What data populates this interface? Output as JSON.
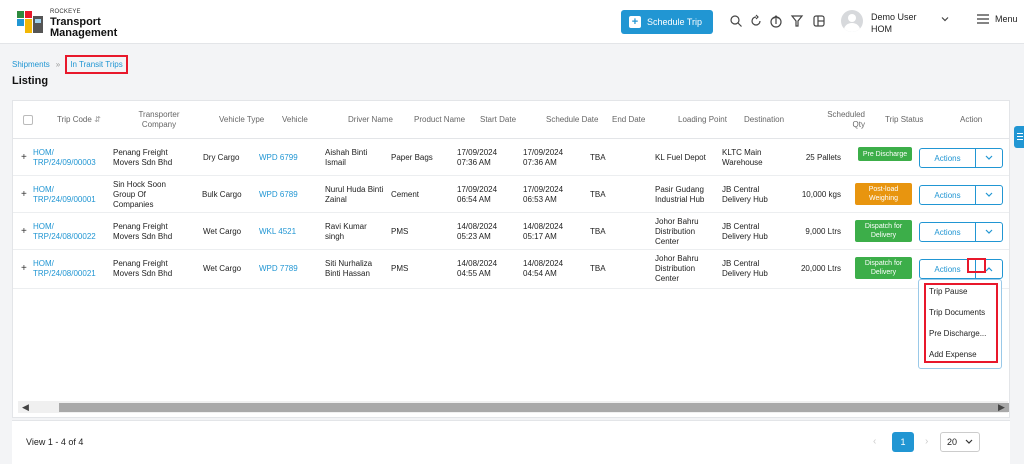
{
  "header": {
    "brand_small": "ROCKEYE",
    "brand_line1": "Transport",
    "brand_line2": "Management",
    "schedule_btn": "Schedule Trip",
    "user_name": "Demo User",
    "user_org": "HOM",
    "menu_label": "Menu"
  },
  "breadcrumb": {
    "root": "Shipments",
    "current": "In Transit Trips"
  },
  "page_title": "Listing",
  "columns": {
    "trip_code": "Trip Code",
    "transporter_1": "Transporter",
    "transporter_2": "Company",
    "vehicle_type": "Vehicle Type",
    "vehicle": "Vehicle",
    "driver": "Driver Name",
    "product": "Product Name",
    "start": "Start Date",
    "schedule": "Schedule Date",
    "end": "End Date",
    "loading": "Loading Point",
    "destination": "Destination",
    "qty_1": "Scheduled",
    "qty_2": "Qty",
    "status": "Trip Status",
    "action": "Action"
  },
  "rows": [
    {
      "trip_1": "HOM/",
      "trip_2": "TRP/24/09/00003",
      "company": [
        "Penang Freight",
        "Movers Sdn Bhd"
      ],
      "vtype": "Dry Cargo",
      "vehicle": "WPD 6799",
      "driver": [
        "Aishah Binti",
        "Ismail"
      ],
      "product": "Paper Bags",
      "start": [
        "17/09/2024",
        "07:36 AM"
      ],
      "schedule": [
        "17/09/2024",
        "07:36 AM"
      ],
      "end": "TBA",
      "loading": [
        "KL Fuel Depot"
      ],
      "dest": [
        "KLTC Main",
        "Warehouse"
      ],
      "qty": "25 Pallets",
      "status": "Pre Discharge",
      "action": "Actions"
    },
    {
      "trip_1": "HOM/",
      "trip_2": "TRP/24/09/00001",
      "company": [
        "Sin Hock Soon",
        "Group Of",
        "Companies"
      ],
      "vtype": "Bulk Cargo",
      "vehicle": "WPD 6789",
      "driver": [
        "Nurul Huda Binti",
        "Zainal"
      ],
      "product": "Cement",
      "start": [
        "17/09/2024",
        "06:54 AM"
      ],
      "schedule": [
        "17/09/2024",
        "06:53 AM"
      ],
      "end": "TBA",
      "loading": [
        "Pasir Gudang",
        "Industrial Hub"
      ],
      "dest": [
        "JB Central",
        "Delivery Hub"
      ],
      "qty": "10,000 kgs",
      "status": "Post-load Weighing",
      "action": "Actions"
    },
    {
      "trip_1": "HOM/",
      "trip_2": "TRP/24/08/00022",
      "company": [
        "Penang Freight",
        "Movers Sdn Bhd"
      ],
      "vtype": "Wet Cargo",
      "vehicle": "WKL 4521",
      "driver": [
        "Ravi Kumar",
        "singh"
      ],
      "product": "PMS",
      "start": [
        "14/08/2024",
        "05:23 AM"
      ],
      "schedule": [
        "14/08/2024",
        "05:17 AM"
      ],
      "end": "TBA",
      "loading": [
        "Johor Bahru",
        "Distribution",
        "Center"
      ],
      "dest": [
        "JB Central",
        "Delivery Hub"
      ],
      "qty": "9,000 Ltrs",
      "status": "Dispatch for Delivery",
      "action": "Actions"
    },
    {
      "trip_1": "HOM/",
      "trip_2": "TRP/24/08/00021",
      "company": [
        "Penang Freight",
        "Movers Sdn Bhd"
      ],
      "vtype": "Wet Cargo",
      "vehicle": "WPD 7789",
      "driver": [
        "Siti Nurhaliza",
        "Binti Hassan"
      ],
      "product": "PMS",
      "start": [
        "14/08/2024",
        "04:55 AM"
      ],
      "schedule": [
        "14/08/2024",
        "04:54 AM"
      ],
      "end": "TBA",
      "loading": [
        "Johor Bahru",
        "Distribution",
        "Center"
      ],
      "dest": [
        "JB Central",
        "Delivery Hub"
      ],
      "qty": "20,000 Ltrs",
      "status": "Dispatch for Delivery",
      "action": "Actions"
    }
  ],
  "dropdown": [
    "Trip Pause",
    "Trip Documents",
    "Pre Discharge...",
    "Add Expense"
  ],
  "footer": {
    "view": "View 1 - 4 of 4",
    "page": "1",
    "page_size": "20"
  },
  "colors": {
    "accent": "#2196d3",
    "highlight": "#e8182b",
    "green": "#3cae49",
    "orange": "#e8950f"
  }
}
